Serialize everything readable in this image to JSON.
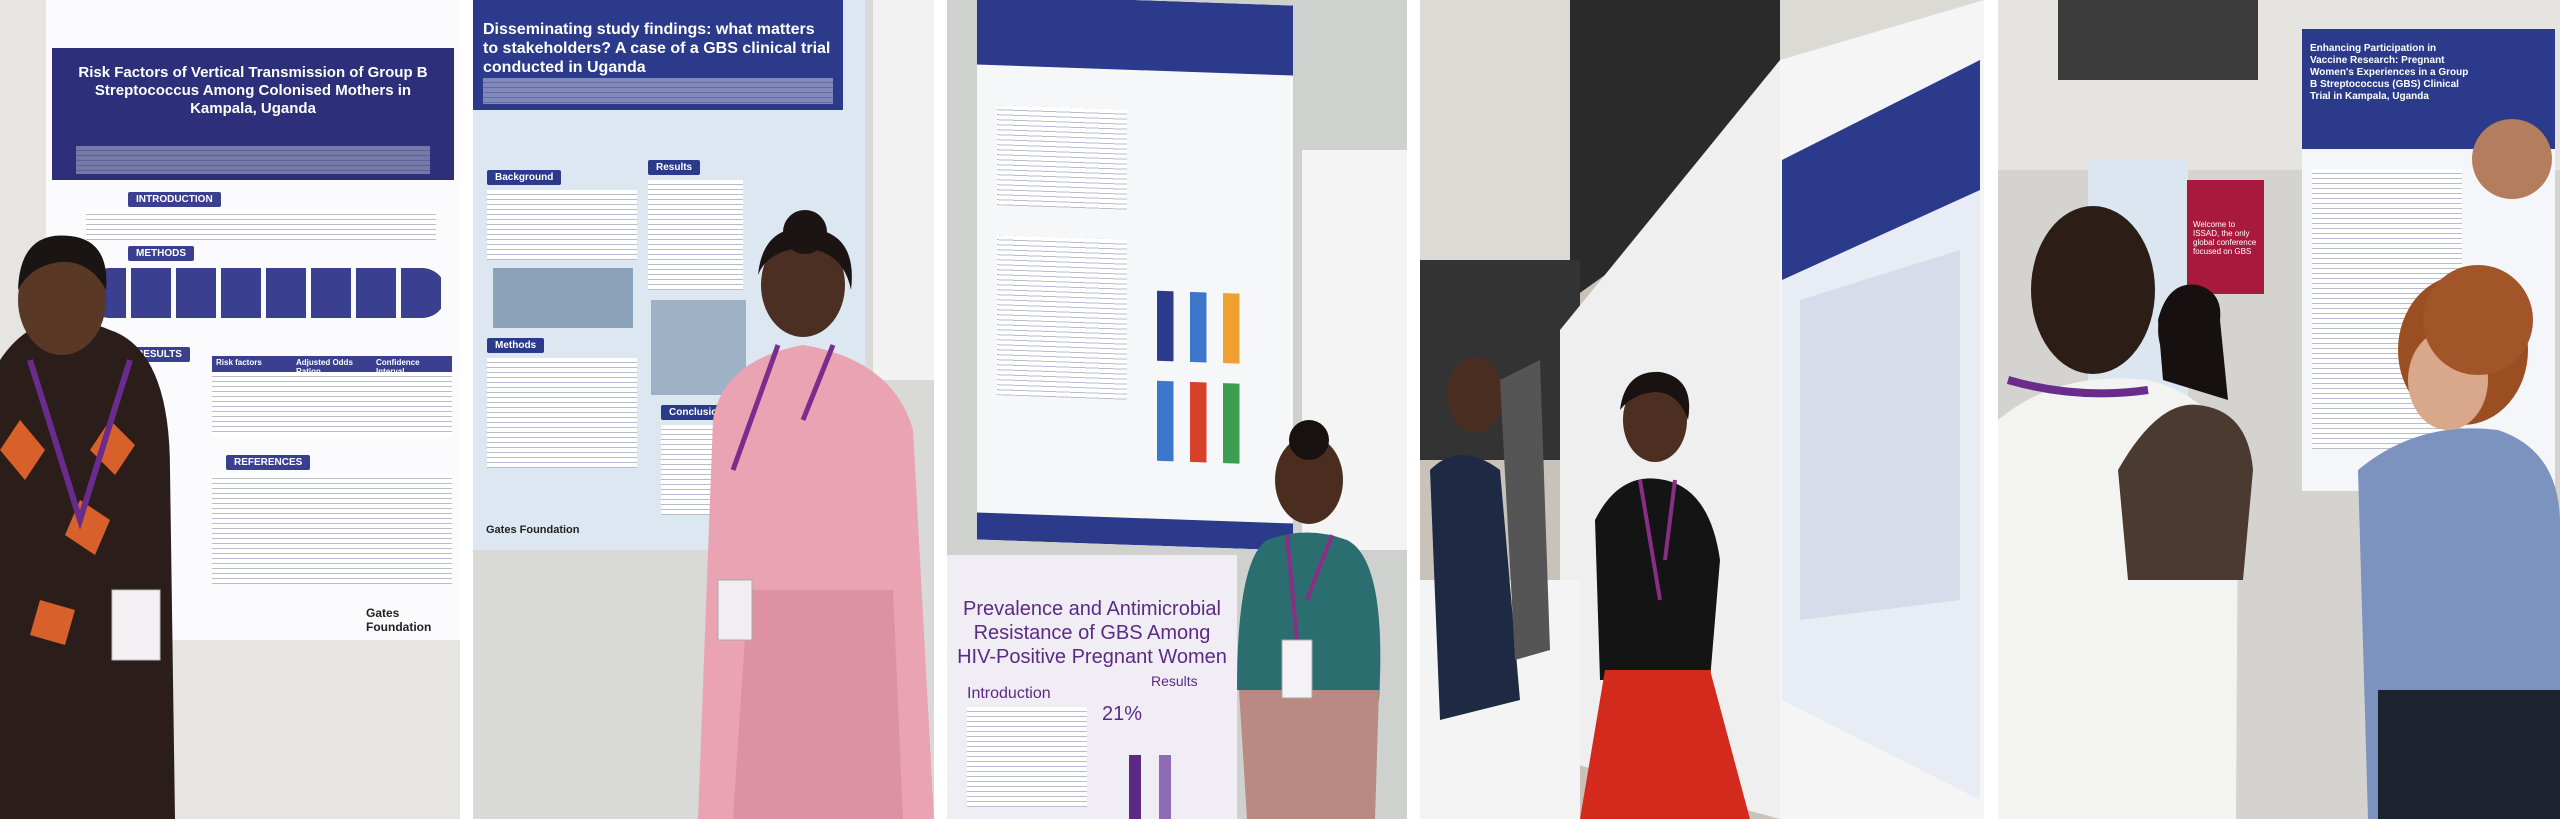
{
  "photo1": {
    "title": "Risk Factors of Vertical Transmission of Group B Streptococcus Among Colonised Mothers in Kampala, Uganda",
    "sections": [
      "INTRODUCTION",
      "METHODS",
      "RESULTS",
      "REFERENCES"
    ],
    "table_header": [
      "Risk factors",
      "Adjusted Odds Ration",
      "Confidence Interval"
    ],
    "footer": "Gates Foundation"
  },
  "photo2": {
    "title": "Disseminating study findings: what matters to stakeholders? A case of a GBS clinical trial conducted in Uganda",
    "sections": [
      "Background",
      "Results",
      "Methods",
      "Conclusion"
    ],
    "footer": "Gates Foundation"
  },
  "photo3": {
    "title": "Prevalence and Antimicrobial Resistance of GBS Among HIV-Positive Pregnant Women",
    "sections": [
      "Introduction",
      "Results"
    ],
    "stat": "21%"
  },
  "photo5": {
    "title": "Enhancing Participation in Vaccine Research: Pregnant Women's Experiences in a Group B Streptococcus (GBS) Clinical Trial in Kampala, Uganda",
    "banner": "Welcome to ISSAD, the only global conference focused on GBS"
  }
}
